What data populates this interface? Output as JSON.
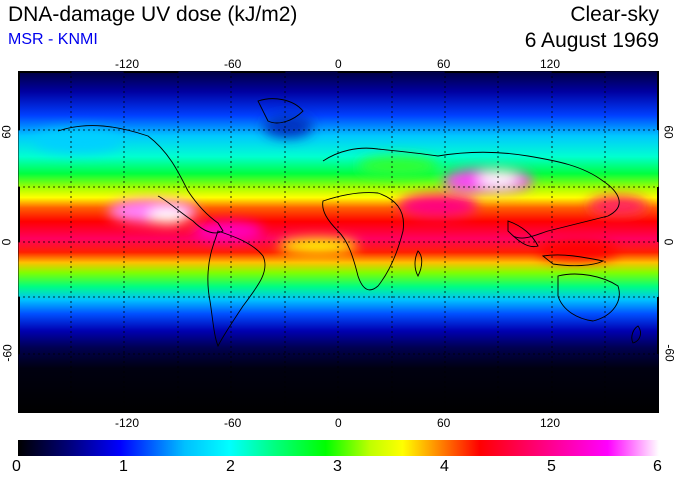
{
  "header": {
    "title": "DNA-damage UV dose (kJ/m2)",
    "subtitle": "MSR - KNMI",
    "title_right": "Clear-sky",
    "date": "6 August 1969"
  },
  "map": {
    "lon_ticks": [
      "-120",
      "-60",
      "0",
      "60",
      "120"
    ],
    "lat_ticks": [
      "60",
      "0",
      "-60"
    ]
  },
  "colorbar": {
    "labels": [
      "0",
      "1",
      "2",
      "3",
      "4",
      "5",
      "6"
    ],
    "min": 0,
    "max": 6,
    "colors": [
      "#000000",
      "#00007a",
      "#0000ff",
      "#00c0ff",
      "#00ffff",
      "#00ff80",
      "#00ff00",
      "#c0ff00",
      "#ffff00",
      "#ff8000",
      "#ff0000",
      "#ff0080",
      "#ff00ff",
      "#ffffff"
    ]
  }
}
